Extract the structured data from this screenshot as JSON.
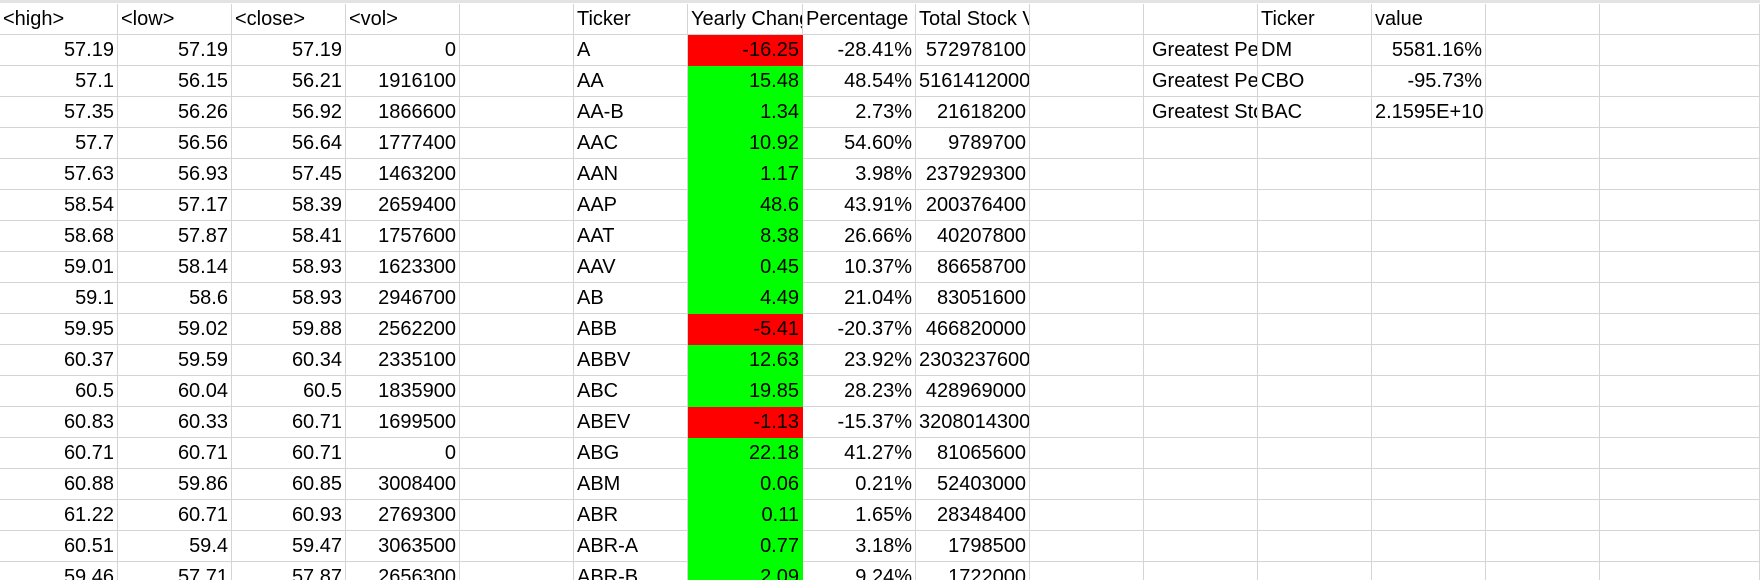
{
  "headers": {
    "high": "<high>",
    "low": "<low>",
    "close": "<close>",
    "vol": "<vol>",
    "ticker": "Ticker",
    "yearly_change": "Yearly Change",
    "percentage_change": "Percentage Change",
    "total_volume": "Total Stock Volume",
    "summary_ticker": "Ticker",
    "summary_value": "value"
  },
  "colors": {
    "positive_fill": "#00ff00",
    "negative_fill": "#ff0000",
    "gridline": "#d4d4d4"
  },
  "price_rows": [
    {
      "high": "57.19",
      "low": "57.19",
      "close": "57.19",
      "vol": "0"
    },
    {
      "high": "57.1",
      "low": "56.15",
      "close": "56.21",
      "vol": "1916100"
    },
    {
      "high": "57.35",
      "low": "56.26",
      "close": "56.92",
      "vol": "1866600"
    },
    {
      "high": "57.7",
      "low": "56.56",
      "close": "56.64",
      "vol": "1777400"
    },
    {
      "high": "57.63",
      "low": "56.93",
      "close": "57.45",
      "vol": "1463200"
    },
    {
      "high": "58.54",
      "low": "57.17",
      "close": "58.39",
      "vol": "2659400"
    },
    {
      "high": "58.68",
      "low": "57.87",
      "close": "58.41",
      "vol": "1757600"
    },
    {
      "high": "59.01",
      "low": "58.14",
      "close": "58.93",
      "vol": "1623300"
    },
    {
      "high": "59.1",
      "low": "58.6",
      "close": "58.93",
      "vol": "2946700"
    },
    {
      "high": "59.95",
      "low": "59.02",
      "close": "59.88",
      "vol": "2562200"
    },
    {
      "high": "60.37",
      "low": "59.59",
      "close": "60.34",
      "vol": "2335100"
    },
    {
      "high": "60.5",
      "low": "60.04",
      "close": "60.5",
      "vol": "1835900"
    },
    {
      "high": "60.83",
      "low": "60.33",
      "close": "60.71",
      "vol": "1699500"
    },
    {
      "high": "60.71",
      "low": "60.71",
      "close": "60.71",
      "vol": "0"
    },
    {
      "high": "60.88",
      "low": "59.86",
      "close": "60.85",
      "vol": "3008400"
    },
    {
      "high": "61.22",
      "low": "60.71",
      "close": "60.93",
      "vol": "2769300"
    },
    {
      "high": "60.51",
      "low": "59.4",
      "close": "59.47",
      "vol": "3063500"
    },
    {
      "high": "59.46",
      "low": "57.71",
      "close": "57.87",
      "vol": "2656300"
    }
  ],
  "results_rows": [
    {
      "ticker": "A",
      "yearly_change": "-16.25",
      "percent": "-28.41%",
      "volume": "572978100",
      "sign": "neg"
    },
    {
      "ticker": "AA",
      "yearly_change": "15.48",
      "percent": "48.54%",
      "volume": "5161412000",
      "sign": "pos"
    },
    {
      "ticker": "AA-B",
      "yearly_change": "1.34",
      "percent": "2.73%",
      "volume": "21618200",
      "sign": "pos"
    },
    {
      "ticker": "AAC",
      "yearly_change": "10.92",
      "percent": "54.60%",
      "volume": "9789700",
      "sign": "pos"
    },
    {
      "ticker": "AAN",
      "yearly_change": "1.17",
      "percent": "3.98%",
      "volume": "237929300",
      "sign": "pos"
    },
    {
      "ticker": "AAP",
      "yearly_change": "48.6",
      "percent": "43.91%",
      "volume": "200376400",
      "sign": "pos"
    },
    {
      "ticker": "AAT",
      "yearly_change": "8.38",
      "percent": "26.66%",
      "volume": "40207800",
      "sign": "pos"
    },
    {
      "ticker": "AAV",
      "yearly_change": "0.45",
      "percent": "10.37%",
      "volume": "86658700",
      "sign": "pos"
    },
    {
      "ticker": "AB",
      "yearly_change": "4.49",
      "percent": "21.04%",
      "volume": "83051600",
      "sign": "pos"
    },
    {
      "ticker": "ABB",
      "yearly_change": "-5.41",
      "percent": "-20.37%",
      "volume": "466820000",
      "sign": "neg"
    },
    {
      "ticker": "ABBV",
      "yearly_change": "12.63",
      "percent": "23.92%",
      "volume": "2303237600",
      "sign": "pos"
    },
    {
      "ticker": "ABC",
      "yearly_change": "19.85",
      "percent": "28.23%",
      "volume": "428969000",
      "sign": "pos"
    },
    {
      "ticker": "ABEV",
      "yearly_change": "-1.13",
      "percent": "-15.37%",
      "volume": "3208014300",
      "sign": "neg"
    },
    {
      "ticker": "ABG",
      "yearly_change": "22.18",
      "percent": "41.27%",
      "volume": "81065600",
      "sign": "pos"
    },
    {
      "ticker": "ABM",
      "yearly_change": "0.06",
      "percent": "0.21%",
      "volume": "52403000",
      "sign": "pos"
    },
    {
      "ticker": "ABR",
      "yearly_change": "0.11",
      "percent": "1.65%",
      "volume": "28348400",
      "sign": "pos"
    },
    {
      "ticker": "ABR-A",
      "yearly_change": "0.77",
      "percent": "3.18%",
      "volume": "1798500",
      "sign": "pos"
    },
    {
      "ticker": "ABR-B",
      "yearly_change": "2.09",
      "percent": "9.24%",
      "volume": "1722000",
      "sign": "pos"
    }
  ],
  "summary_rows": [
    {
      "label": "Greatest Percent Increase",
      "ticker": "DM",
      "value": "5581.16%"
    },
    {
      "label": "Greatest Percent Decrease",
      "ticker": "CBO",
      "value": "-95.73%"
    },
    {
      "label": "Greatest Stock Volume",
      "ticker": "BAC",
      "value": "2.1595E+10"
    }
  ]
}
